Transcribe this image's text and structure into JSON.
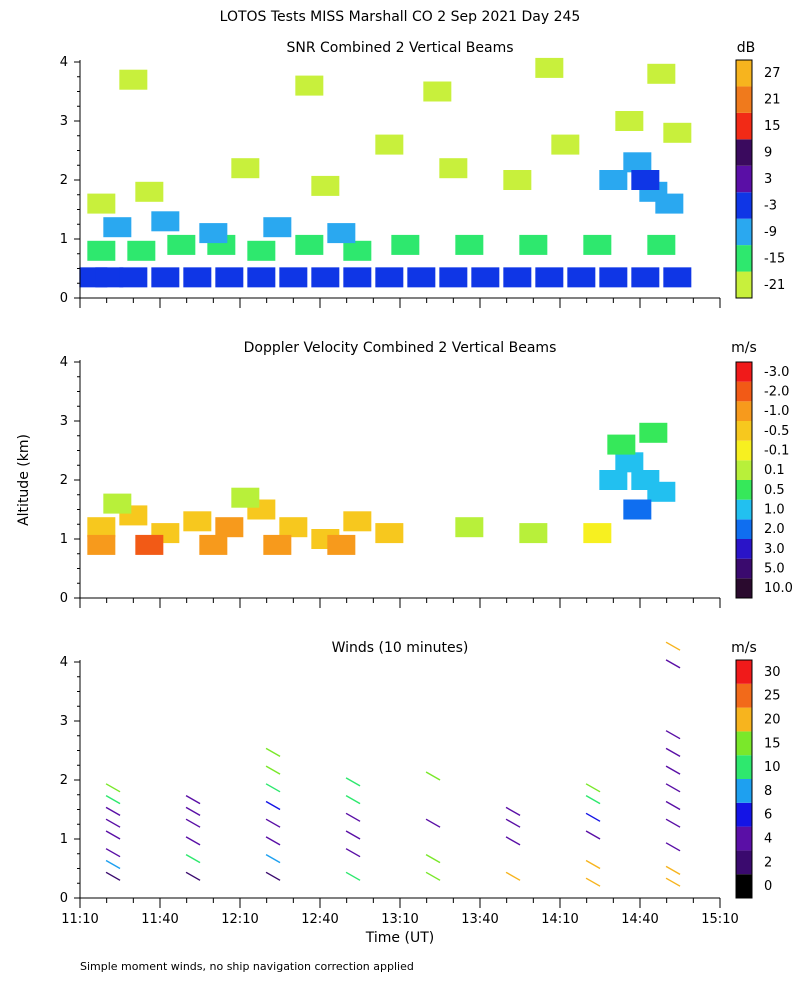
{
  "title": "LOTOS Tests MISS Marshall CO   2 Sep 2021 Day 245",
  "footnote": "Simple moment winds, no ship navigation correction applied",
  "colors": {
    "background": "#ffffff",
    "axis": "#000000"
  },
  "chart_data": [
    {
      "type": "heatmap",
      "title": "SNR Combined 2 Vertical Beams",
      "ylim": [
        0,
        4
      ],
      "yticks": [
        "0",
        "1",
        "2",
        "3",
        "4"
      ],
      "xlim_hours": [
        11.1667,
        15.1667
      ],
      "colorbar": {
        "unit": "dB",
        "labels": [
          "-21",
          "-15",
          "-9",
          "-3",
          "3",
          "9",
          "15",
          "21",
          "27"
        ],
        "colors": [
          "#c8f03c",
          "#2ee86e",
          "#2aa8f0",
          "#0f36e6",
          "#5a0fa6",
          "#3a0a5e",
          "#f22a16",
          "#f07a1c",
          "#f7b41e"
        ]
      },
      "cells": [
        [
          11.25,
          0.35,
          -3
        ],
        [
          11.35,
          0.35,
          -3
        ],
        [
          11.5,
          0.35,
          -3
        ],
        [
          11.7,
          0.35,
          -3
        ],
        [
          11.9,
          0.35,
          -3
        ],
        [
          12.1,
          0.35,
          -3
        ],
        [
          12.3,
          0.35,
          -3
        ],
        [
          12.5,
          0.35,
          -3
        ],
        [
          12.7,
          0.35,
          -3
        ],
        [
          12.9,
          0.35,
          -3
        ],
        [
          13.1,
          0.35,
          -3
        ],
        [
          13.3,
          0.35,
          -3
        ],
        [
          13.5,
          0.35,
          -3
        ],
        [
          13.7,
          0.35,
          -3
        ],
        [
          13.9,
          0.35,
          -3
        ],
        [
          14.1,
          0.35,
          -3
        ],
        [
          14.3,
          0.35,
          -3
        ],
        [
          14.5,
          0.35,
          -3
        ],
        [
          14.7,
          0.35,
          -3
        ],
        [
          14.9,
          0.35,
          -3
        ],
        [
          11.3,
          0.8,
          -15
        ],
        [
          11.55,
          0.8,
          -15
        ],
        [
          11.8,
          0.9,
          -15
        ],
        [
          12.05,
          0.9,
          -15
        ],
        [
          12.3,
          0.8,
          -15
        ],
        [
          12.6,
          0.9,
          -15
        ],
        [
          12.9,
          0.8,
          -15
        ],
        [
          13.2,
          0.9,
          -15
        ],
        [
          13.6,
          0.9,
          -15
        ],
        [
          14.0,
          0.9,
          -15
        ],
        [
          14.4,
          0.9,
          -15
        ],
        [
          14.8,
          0.9,
          -15
        ],
        [
          11.4,
          1.2,
          -9
        ],
        [
          11.7,
          1.3,
          -9
        ],
        [
          12.0,
          1.1,
          -9
        ],
        [
          12.4,
          1.2,
          -9
        ],
        [
          12.8,
          1.1,
          -9
        ],
        [
          11.3,
          1.6,
          -21
        ],
        [
          11.6,
          1.8,
          -21
        ],
        [
          12.2,
          2.2,
          -21
        ],
        [
          12.7,
          1.9,
          -21
        ],
        [
          13.1,
          2.6,
          -21
        ],
        [
          13.5,
          2.2,
          -21
        ],
        [
          13.9,
          2.0,
          -21
        ],
        [
          14.2,
          2.6,
          -21
        ],
        [
          14.6,
          3.0,
          -21
        ],
        [
          14.9,
          2.8,
          -21
        ],
        [
          11.5,
          3.7,
          -21
        ],
        [
          12.6,
          3.6,
          -21
        ],
        [
          13.4,
          3.5,
          -21
        ],
        [
          14.1,
          3.9,
          -21
        ],
        [
          14.8,
          3.8,
          -21
        ],
        [
          14.5,
          2.0,
          -9
        ],
        [
          14.65,
          2.3,
          -9
        ],
        [
          14.75,
          1.8,
          -9
        ],
        [
          14.7,
          2.0,
          -3
        ],
        [
          14.85,
          1.6,
          -9
        ]
      ]
    },
    {
      "type": "heatmap",
      "title": "Doppler Velocity Combined 2 Vertical Beams",
      "ylabel": "Altitude (km)",
      "ylim": [
        0,
        4
      ],
      "yticks": [
        "0",
        "1",
        "2",
        "3",
        "4"
      ],
      "xlim_hours": [
        11.1667,
        15.1667
      ],
      "colorbar": {
        "unit": "m/s",
        "labels": [
          "10.0",
          "5.0",
          "3.0",
          "2.0",
          "1.0",
          "0.5",
          "0.1",
          "-0.1",
          "-0.5",
          "-1.0",
          "-2.0",
          "-3.0"
        ],
        "colors": [
          "#2a0a2e",
          "#3a0a6e",
          "#2a14c8",
          "#0f6ef0",
          "#22c0f0",
          "#36e85a",
          "#b8f03a",
          "#f7f020",
          "#f7c81e",
          "#f79a1c",
          "#f25a16",
          "#f01a1a"
        ]
      },
      "cells": [
        [
          11.3,
          1.2,
          -0.5
        ],
        [
          11.5,
          1.4,
          -0.5
        ],
        [
          11.7,
          1.1,
          -0.5
        ],
        [
          11.9,
          1.3,
          -0.5
        ],
        [
          12.1,
          1.2,
          -1.0
        ],
        [
          12.3,
          1.5,
          -0.5
        ],
        [
          12.5,
          1.2,
          -0.5
        ],
        [
          12.7,
          1.0,
          -0.5
        ],
        [
          12.9,
          1.3,
          -0.5
        ],
        [
          13.1,
          1.1,
          -0.5
        ],
        [
          11.3,
          0.9,
          -1.0
        ],
        [
          11.6,
          0.9,
          -2.0
        ],
        [
          12.0,
          0.9,
          -1.0
        ],
        [
          12.4,
          0.9,
          -1.0
        ],
        [
          12.8,
          0.9,
          -1.0
        ],
        [
          11.4,
          1.6,
          0.1
        ],
        [
          12.2,
          1.7,
          0.1
        ],
        [
          13.6,
          1.2,
          0.1
        ],
        [
          14.0,
          1.1,
          0.1
        ],
        [
          14.4,
          1.1,
          -0.1
        ],
        [
          14.5,
          2.0,
          1.0
        ],
        [
          14.6,
          2.3,
          1.0
        ],
        [
          14.7,
          2.0,
          1.0
        ],
        [
          14.8,
          1.8,
          1.0
        ],
        [
          14.65,
          1.5,
          2.0
        ],
        [
          14.55,
          2.6,
          0.5
        ],
        [
          14.75,
          2.8,
          0.5
        ]
      ]
    },
    {
      "type": "scatter",
      "title": "Winds (10 minutes)",
      "xlabel": "Time (UT)",
      "ylim": [
        0,
        4
      ],
      "yticks": [
        "0",
        "1",
        "2",
        "3",
        "4"
      ],
      "xlim_hours": [
        11.1667,
        15.1667
      ],
      "xticks": [
        "11:10",
        "11:40",
        "12:10",
        "12:40",
        "13:10",
        "13:40",
        "14:10",
        "14:40",
        "15:10"
      ],
      "colorbar": {
        "unit": "m/s",
        "labels": [
          "0",
          "2",
          "4",
          "6",
          "8",
          "10",
          "15",
          "20",
          "25",
          "30"
        ],
        "colors": [
          "#000000",
          "#3a0a6e",
          "#5a0fa6",
          "#1414e6",
          "#1ea0f0",
          "#2ee86e",
          "#7ae82a",
          "#f7b41e",
          "#f26a1a",
          "#f01a1a"
        ]
      },
      "profiles": [
        {
          "time": 11.417,
          "winds": [
            [
              0.3,
              3
            ],
            [
              0.5,
              8
            ],
            [
              0.7,
              4
            ],
            [
              1.0,
              5
            ],
            [
              1.2,
              5
            ],
            [
              1.4,
              5
            ],
            [
              1.6,
              10
            ],
            [
              1.8,
              15
            ]
          ]
        },
        {
          "time": 11.917,
          "winds": [
            [
              0.3,
              3
            ],
            [
              0.6,
              10
            ],
            [
              0.9,
              5
            ],
            [
              1.2,
              5
            ],
            [
              1.4,
              5
            ],
            [
              1.6,
              5
            ]
          ]
        },
        {
          "time": 12.417,
          "winds": [
            [
              0.3,
              3
            ],
            [
              0.6,
              8
            ],
            [
              0.9,
              5
            ],
            [
              1.2,
              5
            ],
            [
              1.5,
              6
            ],
            [
              1.8,
              10
            ],
            [
              2.1,
              15
            ],
            [
              2.4,
              17
            ]
          ]
        },
        {
          "time": 12.917,
          "winds": [
            [
              0.3,
              12
            ],
            [
              0.7,
              5
            ],
            [
              1.0,
              5
            ],
            [
              1.3,
              5
            ],
            [
              1.6,
              10
            ],
            [
              1.9,
              12
            ]
          ]
        },
        {
          "time": 13.417,
          "winds": [
            [
              0.3,
              17
            ],
            [
              0.6,
              15
            ],
            [
              1.2,
              5
            ],
            [
              2.0,
              15
            ]
          ]
        },
        {
          "time": 13.917,
          "winds": [
            [
              0.3,
              20
            ],
            [
              0.9,
              5
            ],
            [
              1.2,
              5
            ],
            [
              1.4,
              5
            ]
          ]
        },
        {
          "time": 14.417,
          "winds": [
            [
              0.2,
              20
            ],
            [
              0.5,
              20
            ],
            [
              1.0,
              4
            ],
            [
              1.3,
              7
            ],
            [
              1.6,
              10
            ],
            [
              1.8,
              15
            ]
          ]
        },
        {
          "time": 14.917,
          "winds": [
            [
              0.2,
              18
            ],
            [
              0.4,
              22
            ],
            [
              0.8,
              5
            ],
            [
              1.2,
              5
            ],
            [
              1.5,
              5
            ],
            [
              1.8,
              5
            ],
            [
              2.1,
              5
            ],
            [
              2.4,
              5
            ],
            [
              2.7,
              5
            ],
            [
              3.9,
              5
            ],
            [
              4.2,
              22
            ]
          ]
        }
      ]
    }
  ]
}
